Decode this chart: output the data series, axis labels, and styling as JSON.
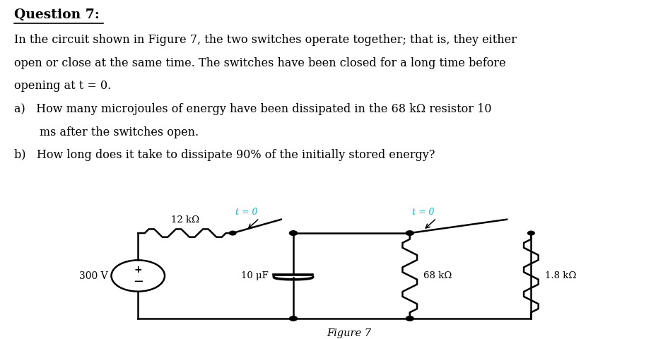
{
  "title": "Question 7:",
  "line1": "In the circuit shown in Figure 7, the two switches operate together; that is, they either",
  "line2": "open or close at the same time. The switches have been closed for a long time before",
  "line3": "opening at t = 0.",
  "item_a1": "a)   How many microjoules of energy have been dissipated in the 68 kΩ resistor 10",
  "item_a2": "       ms after the switches open.",
  "item_b": "b)   How long does it take to dissipate 90% of the initially stored energy?",
  "figure_label": "Figure 7",
  "bg_color": "#ffffff",
  "text_color": "#000000",
  "switch_color": "#00bcd4",
  "circuit_color": "#000000",
  "voltage": "300 V",
  "resistor1": "12 kΩ",
  "capacitor": "10 μF",
  "resistor2": "68 kΩ",
  "resistor3": "1.8 kΩ",
  "t0_label": "t = 0"
}
